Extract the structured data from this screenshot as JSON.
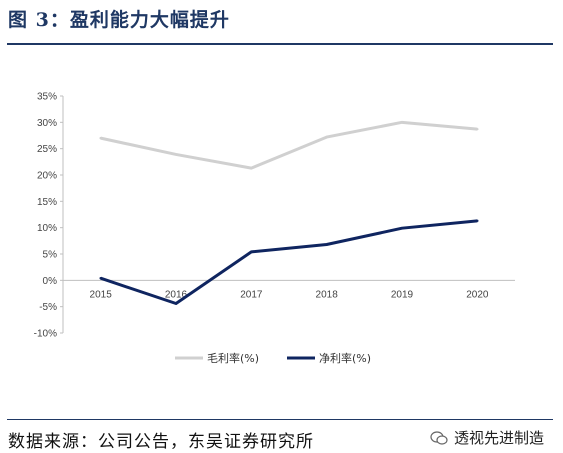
{
  "header": {
    "title": "图 3：盈利能力大幅提升"
  },
  "footer": {
    "source": "数据来源：公司公告，东吴证券研究所",
    "watermark": "透视先进制造"
  },
  "colors": {
    "gross": "#d0d0d0",
    "net": "#0f2560",
    "axis": "#bfbfbf",
    "accent": "#1f3864"
  },
  "chart_data": {
    "type": "line",
    "categories": [
      "2015",
      "2016",
      "2017",
      "2018",
      "2019",
      "2020"
    ],
    "series": [
      {
        "name": "毛利率(%)",
        "values": [
          27.0,
          23.9,
          21.3,
          27.2,
          30.0,
          28.7
        ],
        "color": "#d0d0d0"
      },
      {
        "name": "净利率(%)",
        "values": [
          0.4,
          -4.4,
          5.4,
          6.8,
          9.9,
          11.3
        ],
        "color": "#0f2560"
      }
    ],
    "yticks": [
      "35%",
      "30%",
      "25%",
      "20%",
      "15%",
      "10%",
      "5%",
      "0%",
      "-5%",
      "-10%"
    ],
    "ylim": [
      -10,
      35
    ],
    "grid": false,
    "legend": "bottom"
  }
}
